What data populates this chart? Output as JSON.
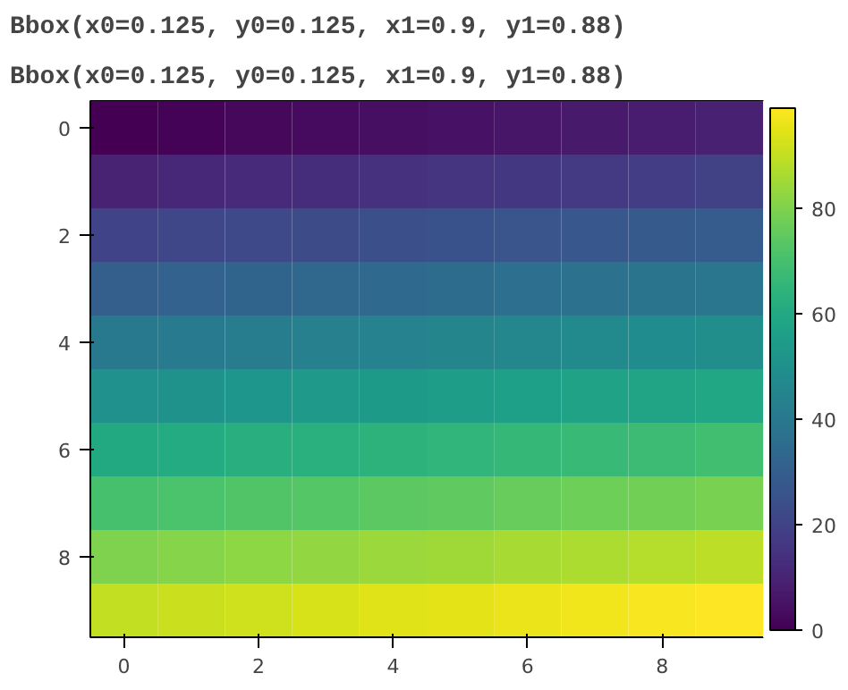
{
  "chart_data": {
    "type": "heatmap",
    "annotations": [
      "Bbox(x0=0.125, y0=0.125, x1=0.9, y1=0.88)",
      "Bbox(x0=0.125, y0=0.125, x1=0.9, y1=0.88)"
    ],
    "categories": [
      "0",
      null,
      "2",
      null,
      "4",
      null,
      "6",
      null,
      "8",
      null
    ],
    "y_categories": [
      "0",
      null,
      "2",
      null,
      "4",
      null,
      "6",
      null,
      "8",
      null
    ],
    "cells": [
      [
        0,
        1,
        2,
        3,
        4,
        5,
        6,
        7,
        8,
        9
      ],
      [
        10,
        11,
        12,
        13,
        14,
        15,
        16,
        17,
        18,
        19
      ],
      [
        20,
        21,
        22,
        23,
        24,
        25,
        26,
        27,
        28,
        29
      ],
      [
        30,
        31,
        32,
        33,
        34,
        35,
        36,
        37,
        38,
        39
      ],
      [
        40,
        41,
        42,
        43,
        44,
        45,
        46,
        47,
        48,
        49
      ],
      [
        50,
        51,
        52,
        53,
        54,
        55,
        56,
        57,
        58,
        59
      ],
      [
        60,
        61,
        62,
        63,
        64,
        65,
        66,
        67,
        68,
        69
      ],
      [
        70,
        71,
        72,
        73,
        74,
        75,
        76,
        77,
        78,
        79
      ],
      [
        80,
        81,
        82,
        83,
        84,
        85,
        86,
        87,
        88,
        89
      ],
      [
        90,
        91,
        92,
        93,
        94,
        95,
        96,
        97,
        98,
        99
      ]
    ],
    "clim": [
      0,
      99
    ],
    "cticks": [
      0,
      20,
      40,
      60,
      80
    ]
  }
}
